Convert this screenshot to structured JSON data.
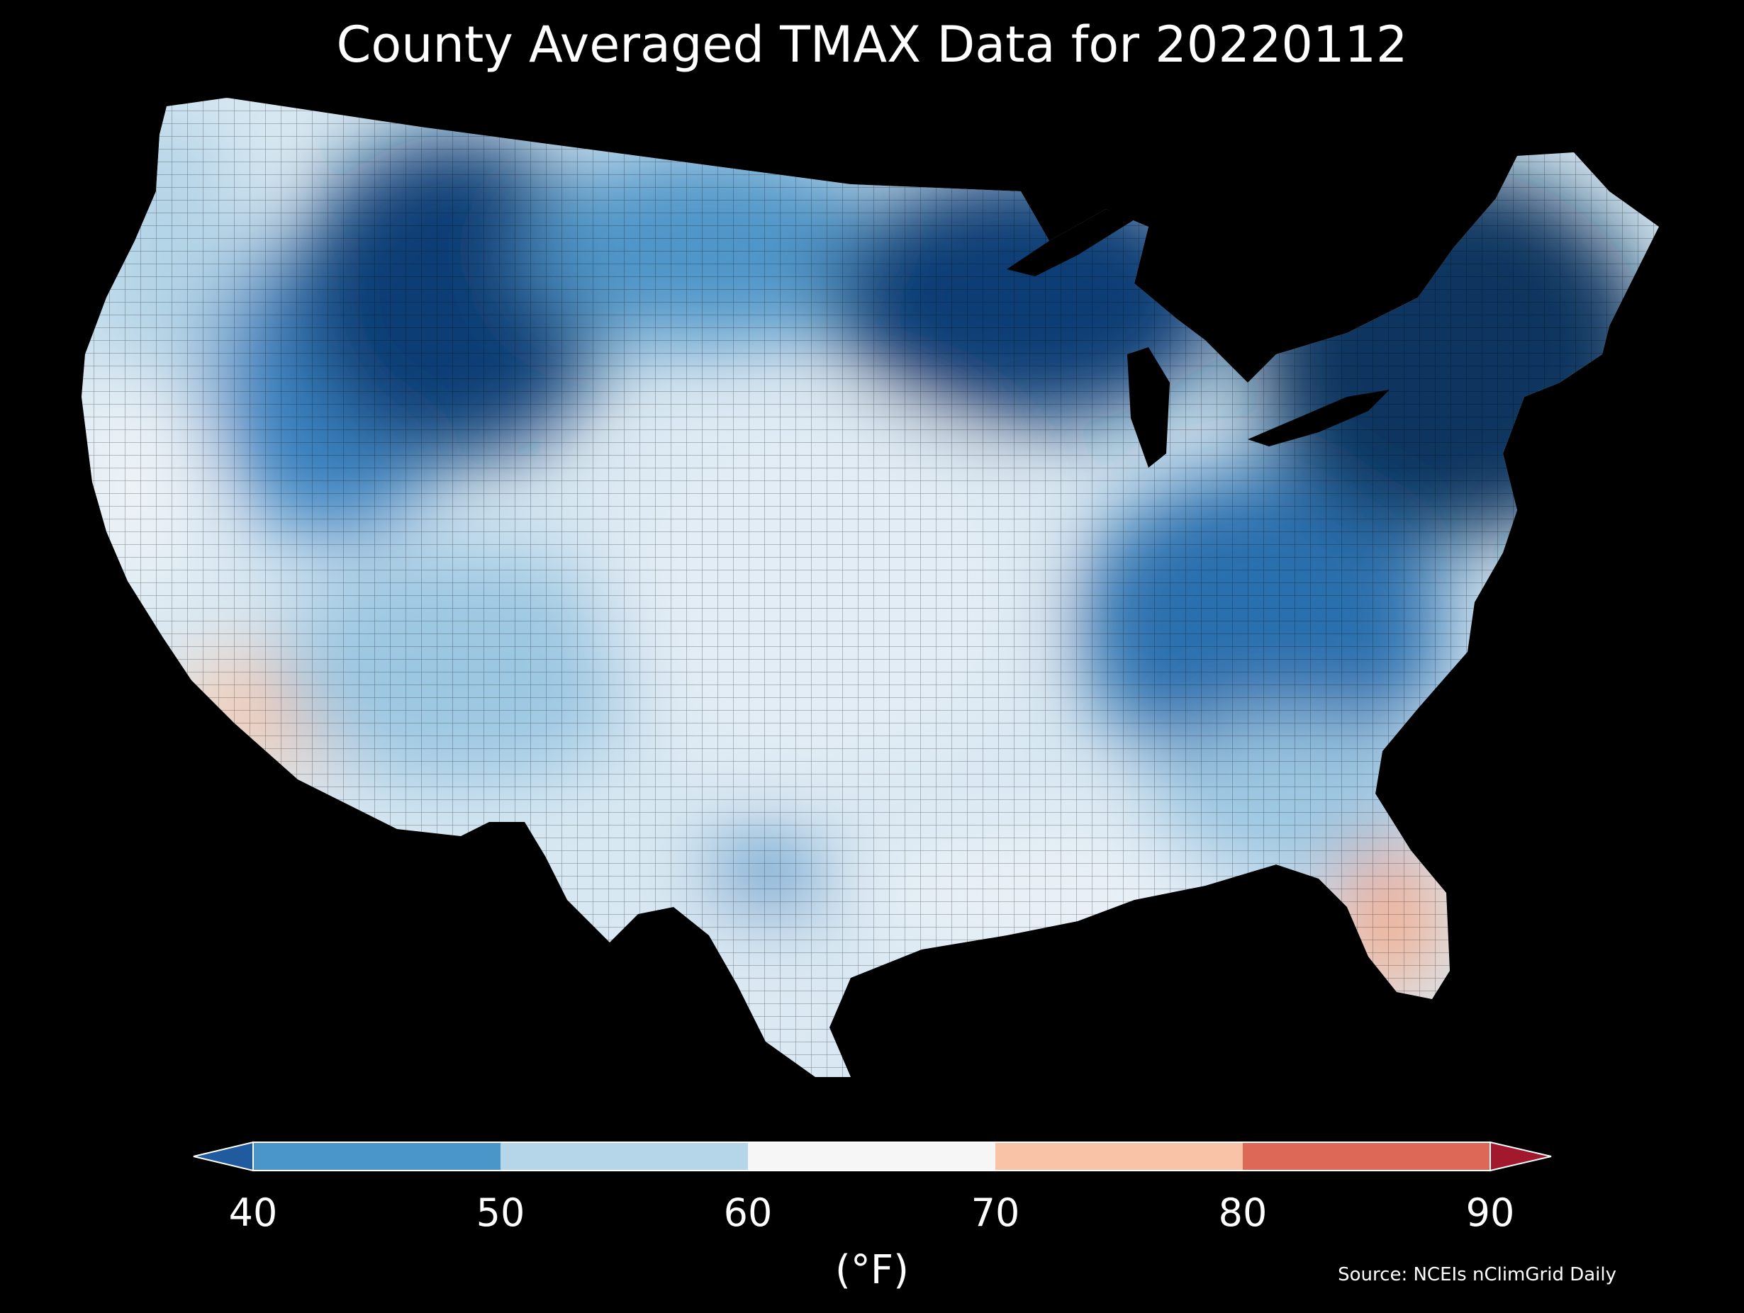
{
  "title": "County Averaged TMAX Data for 20220112",
  "map": {
    "region": "contiguous United States",
    "variable": "TMAX",
    "date": "20220112",
    "background_color": "#000000",
    "county_border_color": "#000000",
    "regions": [
      {
        "id": "pacific-northwest-coast",
        "temp_band": "50-60",
        "color": "#b4d4e7"
      },
      {
        "id": "california-coast",
        "temp_band": "60-70",
        "color": "#eef3f7"
      },
      {
        "id": "southern-california",
        "temp_band": "70-80",
        "color": "#f9c9ab"
      },
      {
        "id": "northern-rockies",
        "temp_band": "<40",
        "color": "#0d3e74"
      },
      {
        "id": "great-basin",
        "temp_band": "40-50",
        "color": "#3b82c0"
      },
      {
        "id": "southwest",
        "temp_band": "50-60",
        "color": "#9cc7e2"
      },
      {
        "id": "northern-plains",
        "temp_band": "40-50",
        "color": "#4f95c8"
      },
      {
        "id": "central-plains",
        "temp_band": "60-70",
        "color": "#e3edf5"
      },
      {
        "id": "upper-midwest",
        "temp_band": "<40",
        "color": "#0d3e74"
      },
      {
        "id": "texas-interior-cold-pocket",
        "temp_band": "40-50",
        "color": "#4f95c8"
      },
      {
        "id": "south-texas",
        "temp_band": "60-70",
        "color": "#dbe9f3"
      },
      {
        "id": "gulf-coast",
        "temp_band": "60-70",
        "color": "#eaf1f7"
      },
      {
        "id": "appalachia-midatlantic",
        "temp_band": "40-50",
        "color": "#2c6fae"
      },
      {
        "id": "northeast",
        "temp_band": "<40",
        "color": "#0b355f"
      },
      {
        "id": "southeast",
        "temp_band": "50-60",
        "color": "#9cc7e2"
      },
      {
        "id": "florida-peninsula",
        "temp_band": "70-80",
        "color": "#f4a988"
      }
    ]
  },
  "colorbar": {
    "units": "(°F)",
    "ticks": [
      "40",
      "50",
      "60",
      "70",
      "80",
      "90"
    ],
    "tick_values": [
      40,
      50,
      60,
      70,
      80,
      90
    ],
    "extend": "both",
    "under_color": "#1f5b9e",
    "over_color": "#a2182d",
    "bins": [
      {
        "range": [
          40,
          50
        ],
        "color": "#4b96c9"
      },
      {
        "range": [
          50,
          60
        ],
        "color": "#b5d5e8"
      },
      {
        "range": [
          60,
          70
        ],
        "color": "#f6f6f6"
      },
      {
        "range": [
          70,
          80
        ],
        "color": "#f8c3a6"
      },
      {
        "range": [
          80,
          90
        ],
        "color": "#de6857"
      }
    ]
  },
  "source": "Source: NCEIs nClimGrid Daily"
}
